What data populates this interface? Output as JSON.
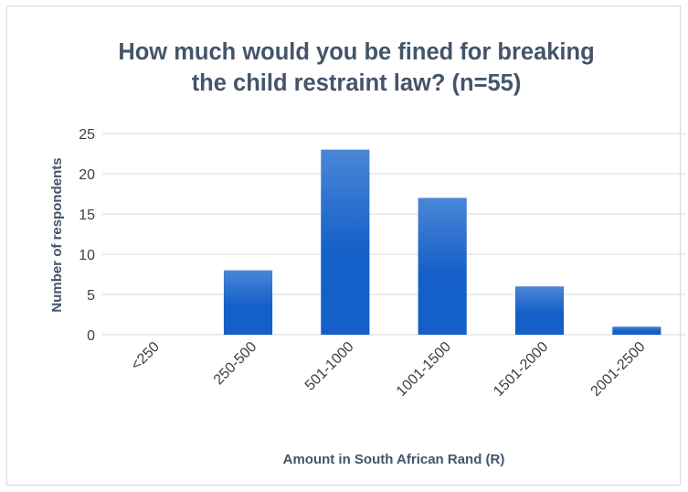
{
  "chart_data": {
    "type": "bar",
    "title": "How much would you be fined for breaking the child restraint law? (n=55)",
    "xlabel": "Amount in South African Rand (R)",
    "ylabel": "Number of respondents",
    "categories": [
      "<250",
      "250-500",
      "501-1000",
      "1001-1500",
      "1501-2000",
      "2001-2500"
    ],
    "values": [
      0,
      8,
      23,
      17,
      6,
      1
    ],
    "yticks": [
      "0",
      "5",
      "10",
      "15",
      "20",
      "25"
    ],
    "ylim": [
      0,
      25
    ],
    "grid": true,
    "legend": "none",
    "colors": {
      "bar_top": "#4a86d6",
      "bar_bottom": "#1560c8",
      "grid": "#d9d9d9",
      "text": "#44546a"
    }
  }
}
